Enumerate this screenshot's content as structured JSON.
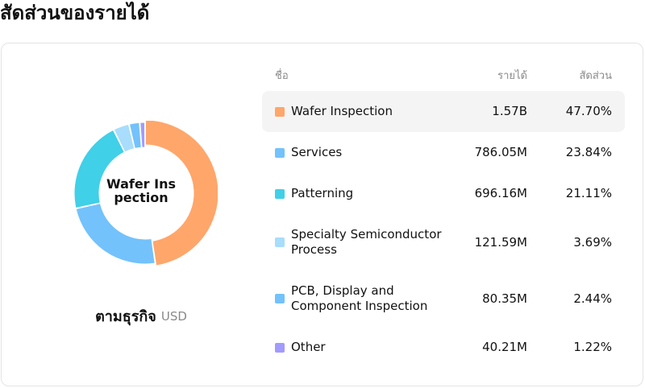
{
  "page": {
    "title": "สัดส่วนของรายได้"
  },
  "table": {
    "headers": {
      "name": "ชื่อ",
      "revenue": "รายได้",
      "share": "สัดส่วน"
    }
  },
  "caption": {
    "main": "ตามธุรกิจ",
    "unit": "USD"
  },
  "chart_data": {
    "type": "pie",
    "variant": "donut",
    "center_label": "Wafer Inspection",
    "highlighted": "Wafer Inspection",
    "categories": [
      "Wafer Inspection",
      "Services",
      "Patterning",
      "Specialty Semiconductor Process",
      "PCB, Display and Component Inspection",
      "Other"
    ],
    "values": [
      47.7,
      23.84,
      21.11,
      3.69,
      2.44,
      1.22
    ],
    "revenue_labels": [
      "1.57B",
      "786.05M",
      "696.16M",
      "121.59M",
      "80.35M",
      "40.21M"
    ],
    "share_labels": [
      "47.70%",
      "23.84%",
      "21.11%",
      "3.69%",
      "2.44%",
      "1.22%"
    ],
    "colors": [
      "#FFA66B",
      "#73C2FB",
      "#40D0E8",
      "#A8DDFB",
      "#73C2FB",
      "#A29BFE"
    ],
    "legend": "table-right"
  }
}
